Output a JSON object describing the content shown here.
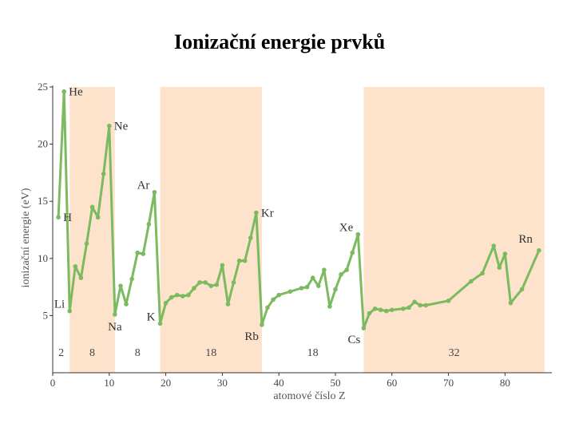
{
  "title": "Ionizační energie prvků",
  "chart_data": {
    "type": "line",
    "xlabel": "atomové číslo Z",
    "ylabel": "ionizační energie (eV)",
    "xlim": [
      0,
      88
    ],
    "ylim": [
      0,
      25
    ],
    "xticks": [
      0,
      10,
      20,
      30,
      40,
      50,
      60,
      70,
      80
    ],
    "yticks": [
      5,
      10,
      15,
      20,
      25
    ],
    "colors": {
      "line": "#7cba5f",
      "band": "#fde3cc"
    },
    "period_bands": [
      [
        3,
        11
      ],
      [
        19,
        37
      ],
      [
        55,
        87
      ]
    ],
    "period_labels": [
      {
        "text": "2",
        "x": 1.5
      },
      {
        "text": "8",
        "x": 7
      },
      {
        "text": "8",
        "x": 15
      },
      {
        "text": "18",
        "x": 28
      },
      {
        "text": "18",
        "x": 46
      },
      {
        "text": "32",
        "x": 71
      }
    ],
    "points": [
      [
        1,
        13.6
      ],
      [
        2,
        24.6
      ],
      [
        3,
        5.4
      ],
      [
        4,
        9.3
      ],
      [
        5,
        8.3
      ],
      [
        6,
        11.3
      ],
      [
        7,
        14.5
      ],
      [
        8,
        13.6
      ],
      [
        9,
        17.4
      ],
      [
        10,
        21.6
      ],
      [
        11,
        5.1
      ],
      [
        12,
        7.6
      ],
      [
        13,
        6.0
      ],
      [
        14,
        8.2
      ],
      [
        15,
        10.5
      ],
      [
        16,
        10.4
      ],
      [
        17,
        13.0
      ],
      [
        18,
        15.8
      ],
      [
        19,
        4.3
      ],
      [
        20,
        6.1
      ],
      [
        21,
        6.6
      ],
      [
        22,
        6.8
      ],
      [
        23,
        6.7
      ],
      [
        24,
        6.8
      ],
      [
        25,
        7.4
      ],
      [
        26,
        7.9
      ],
      [
        27,
        7.9
      ],
      [
        28,
        7.6
      ],
      [
        29,
        7.7
      ],
      [
        30,
        9.4
      ],
      [
        31,
        6.0
      ],
      [
        32,
        7.9
      ],
      [
        33,
        9.8
      ],
      [
        34,
        9.8
      ],
      [
        35,
        11.8
      ],
      [
        36,
        14.0
      ],
      [
        37,
        4.2
      ],
      [
        38,
        5.7
      ],
      [
        39,
        6.4
      ],
      [
        40,
        6.8
      ],
      [
        42,
        7.1
      ],
      [
        44,
        7.4
      ],
      [
        45,
        7.5
      ],
      [
        46,
        8.3
      ],
      [
        47,
        7.6
      ],
      [
        48,
        9.0
      ],
      [
        49,
        5.8
      ],
      [
        50,
        7.3
      ],
      [
        51,
        8.6
      ],
      [
        52,
        9.0
      ],
      [
        53,
        10.5
      ],
      [
        54,
        12.1
      ],
      [
        55,
        3.9
      ],
      [
        56,
        5.2
      ],
      [
        57,
        5.6
      ],
      [
        58,
        5.5
      ],
      [
        59,
        5.4
      ],
      [
        60,
        5.5
      ],
      [
        62,
        5.6
      ],
      [
        63,
        5.7
      ],
      [
        64,
        6.2
      ],
      [
        65,
        5.9
      ],
      [
        66,
        5.9
      ],
      [
        70,
        6.3
      ],
      [
        74,
        8.0
      ],
      [
        76,
        8.7
      ],
      [
        78,
        11.1
      ],
      [
        79,
        9.2
      ],
      [
        80,
        10.4
      ],
      [
        81,
        6.1
      ],
      [
        83,
        7.3
      ],
      [
        86,
        10.7
      ]
    ],
    "annotations": [
      {
        "text": "He",
        "x": 2,
        "y": 24.6,
        "pos": "right"
      },
      {
        "text": "Ne",
        "x": 10,
        "y": 21.6,
        "pos": "right"
      },
      {
        "text": "Ar",
        "x": 18,
        "y": 15.8,
        "pos": "left"
      },
      {
        "text": "Kr",
        "x": 36,
        "y": 14.0,
        "pos": "right"
      },
      {
        "text": "Xe",
        "x": 54,
        "y": 12.1,
        "pos": "left"
      },
      {
        "text": "Rn",
        "x": 86,
        "y": 10.7,
        "pos": "above-left"
      },
      {
        "text": "H",
        "x": 1,
        "y": 13.6,
        "pos": "right"
      },
      {
        "text": "Li",
        "x": 3,
        "y": 5.4,
        "pos": "left"
      },
      {
        "text": "Na",
        "x": 11,
        "y": 5.1,
        "pos": "below"
      },
      {
        "text": "K",
        "x": 19,
        "y": 4.3,
        "pos": "left"
      },
      {
        "text": "Rb",
        "x": 37,
        "y": 4.2,
        "pos": "below-left"
      },
      {
        "text": "Cs",
        "x": 55,
        "y": 3.9,
        "pos": "below-left"
      }
    ]
  }
}
